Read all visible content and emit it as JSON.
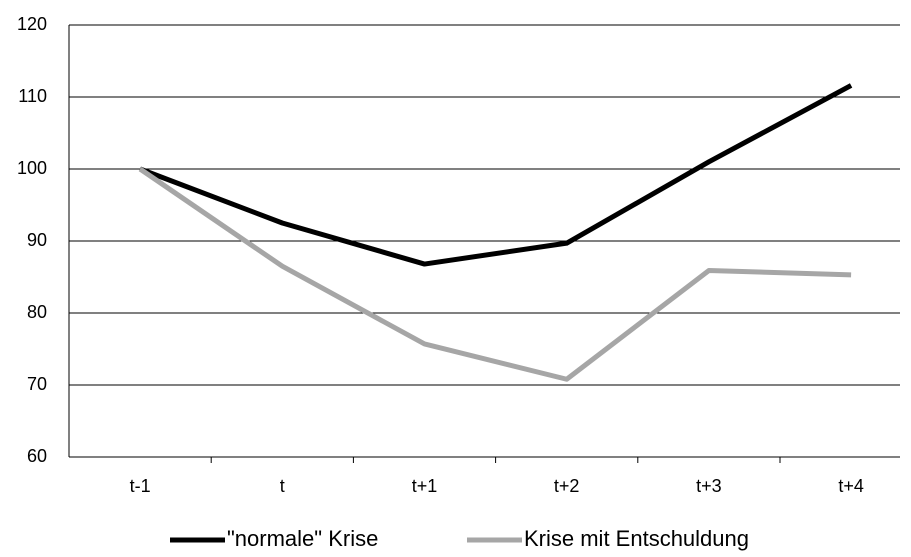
{
  "chart_data": {
    "type": "line",
    "categories": [
      "t-1",
      "t",
      "t+1",
      "t+2",
      "t+3",
      "t+4"
    ],
    "series": [
      {
        "name": "\"normale\" Krise",
        "color": "#000000",
        "values": [
          100,
          92.5,
          86.8,
          89.7,
          101,
          111.6
        ]
      },
      {
        "name": "Krise mit Entschuldung",
        "color": "#a6a6a6",
        "values": [
          100,
          86.5,
          75.7,
          70.8,
          85.9,
          85.3
        ]
      }
    ],
    "ylim": [
      60,
      120
    ],
    "yticks": [
      60,
      70,
      80,
      90,
      100,
      110,
      120
    ],
    "grid": true,
    "legend": "bottom"
  }
}
